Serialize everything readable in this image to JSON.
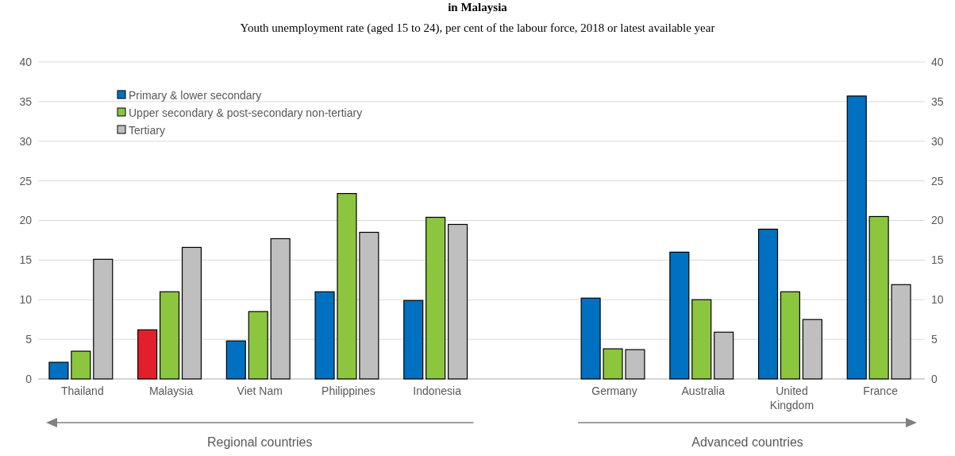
{
  "chart_data": {
    "type": "bar",
    "title": "in Malaysia",
    "subtitle": "Youth unemployment rate (aged 15 to 24), per cent of the labour force, 2018 or latest available year",
    "categories": [
      "Thailand",
      "Malaysia",
      "Viet Nam",
      "Philippines",
      "Indonesia",
      null,
      "Germany",
      "Australia",
      "United Kingdom",
      "France"
    ],
    "series": [
      {
        "name": "Primary & lower secondary",
        "color": "#0070c0",
        "colors": [
          "#0070c0",
          "#e3202a",
          "#0070c0",
          "#0070c0",
          "#0070c0",
          null,
          "#0070c0",
          "#0070c0",
          "#0070c0",
          "#0070c0"
        ],
        "values": [
          2.1,
          6.2,
          4.8,
          11.0,
          9.9,
          null,
          10.2,
          16.0,
          18.9,
          35.7
        ]
      },
      {
        "name": "Upper secondary & post-secondary non-tertiary",
        "color": "#8cc63f",
        "values": [
          3.5,
          11.0,
          8.5,
          23.4,
          20.4,
          null,
          3.8,
          10.0,
          11.0,
          20.5
        ]
      },
      {
        "name": "Tertiary",
        "color": "#bfbfbf",
        "values": [
          15.1,
          16.6,
          17.7,
          18.5,
          19.5,
          null,
          3.7,
          5.9,
          7.5,
          11.9
        ]
      }
    ],
    "ylim": [
      0,
      40
    ],
    "yticks": [
      0,
      5,
      10,
      15,
      20,
      25,
      30,
      35,
      40
    ],
    "y2lim": [
      0,
      40
    ],
    "y2ticks": [
      0,
      5,
      10,
      15,
      20,
      25,
      30,
      35,
      40
    ],
    "grid": "y",
    "legend": "top left",
    "annotations": [
      "Regional countries",
      "Advanced countries"
    ]
  }
}
